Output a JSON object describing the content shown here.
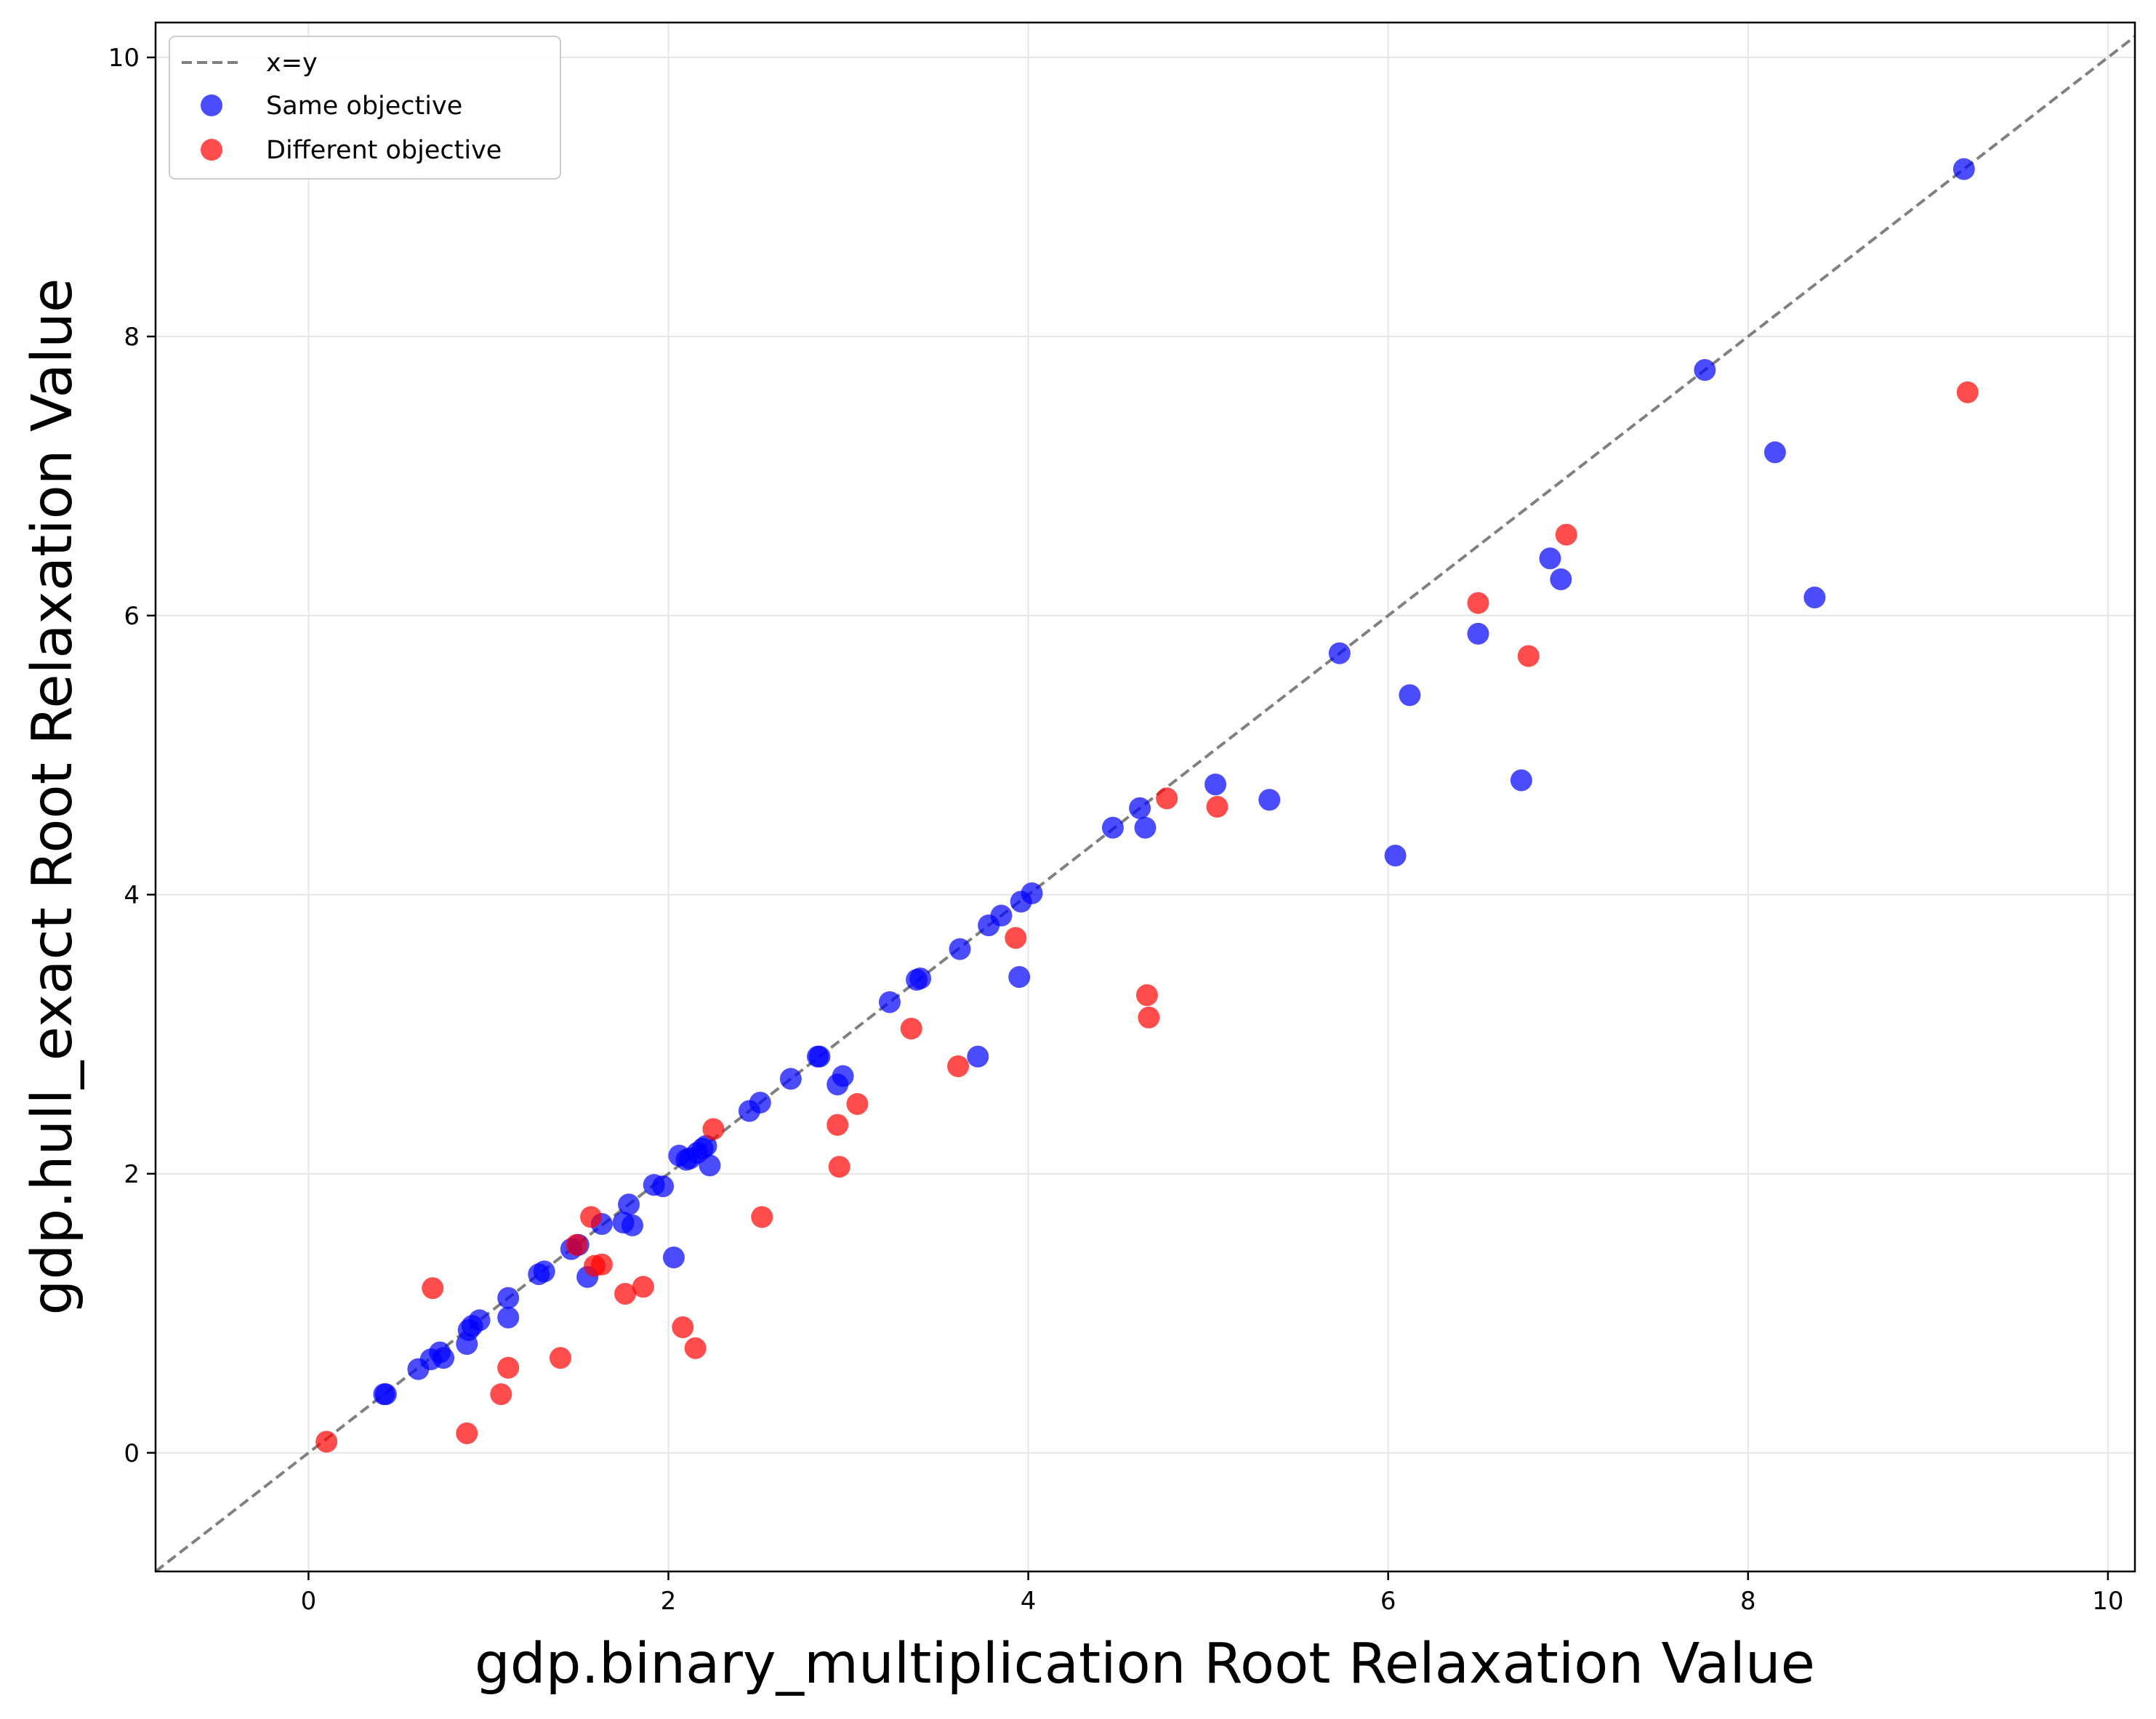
{
  "chart_data": {
    "type": "scatter",
    "title": "",
    "xlabel": "gdp.binary_multiplication Root Relaxation Value",
    "ylabel": "gdp.hull_exact Root Relaxation Value",
    "xlim": [
      -0.85,
      10.15
    ],
    "ylim": [
      -0.85,
      10.25
    ],
    "xticks": [
      0,
      2,
      4,
      6,
      8,
      10
    ],
    "yticks": [
      0,
      2,
      4,
      6,
      8,
      10
    ],
    "xtick_labels": [
      "0",
      "2",
      "4",
      "6",
      "8",
      "10"
    ],
    "ytick_labels": [
      "0",
      "2",
      "4",
      "6",
      "8",
      "10"
    ],
    "grid": true,
    "legend_position": "top-left",
    "reference_line": {
      "name": "x=y",
      "style": "dashed",
      "color": "#808080"
    },
    "series": [
      {
        "name": "Same objective",
        "color": "#0000ff",
        "points": [
          [
            0.42,
            0.42
          ],
          [
            0.43,
            0.42
          ],
          [
            0.61,
            0.6
          ],
          [
            0.68,
            0.67
          ],
          [
            0.73,
            0.72
          ],
          [
            0.75,
            0.68
          ],
          [
            0.88,
            0.78
          ],
          [
            0.89,
            0.88
          ],
          [
            0.91,
            0.91
          ],
          [
            0.95,
            0.95
          ],
          [
            1.11,
            0.97
          ],
          [
            1.11,
            1.11
          ],
          [
            1.28,
            1.28
          ],
          [
            1.31,
            1.3
          ],
          [
            1.46,
            1.46
          ],
          [
            1.5,
            1.49
          ],
          [
            1.55,
            1.26
          ],
          [
            1.63,
            1.64
          ],
          [
            1.75,
            1.65
          ],
          [
            1.78,
            1.78
          ],
          [
            1.8,
            1.63
          ],
          [
            1.92,
            1.92
          ],
          [
            1.97,
            1.91
          ],
          [
            2.03,
            1.4
          ],
          [
            2.06,
            2.13
          ],
          [
            2.1,
            2.1
          ],
          [
            2.12,
            2.11
          ],
          [
            2.16,
            2.15
          ],
          [
            2.19,
            2.18
          ],
          [
            2.21,
            2.2
          ],
          [
            2.23,
            2.06
          ],
          [
            2.45,
            2.45
          ],
          [
            2.51,
            2.51
          ],
          [
            2.68,
            2.68
          ],
          [
            2.83,
            2.84
          ],
          [
            2.84,
            2.84
          ],
          [
            2.94,
            2.64
          ],
          [
            2.97,
            2.7
          ],
          [
            3.23,
            3.23
          ],
          [
            3.38,
            3.39
          ],
          [
            3.4,
            3.4
          ],
          [
            3.62,
            3.61
          ],
          [
            3.72,
            2.84
          ],
          [
            3.78,
            3.78
          ],
          [
            3.85,
            3.85
          ],
          [
            3.95,
            3.41
          ],
          [
            3.96,
            3.95
          ],
          [
            4.02,
            4.01
          ],
          [
            4.47,
            4.48
          ],
          [
            4.62,
            4.62
          ],
          [
            4.65,
            4.48
          ],
          [
            5.04,
            4.79
          ],
          [
            5.34,
            4.68
          ],
          [
            5.73,
            5.73
          ],
          [
            6.04,
            4.28
          ],
          [
            6.12,
            5.43
          ],
          [
            6.5,
            5.87
          ],
          [
            6.74,
            4.82
          ],
          [
            6.9,
            6.41
          ],
          [
            6.96,
            6.26
          ],
          [
            7.76,
            7.76
          ],
          [
            8.15,
            7.17
          ],
          [
            8.37,
            6.13
          ],
          [
            9.2,
            9.2
          ]
        ]
      },
      {
        "name": "Different objective",
        "color": "#ff0000",
        "points": [
          [
            0.1,
            0.08
          ],
          [
            0.69,
            1.18
          ],
          [
            0.88,
            0.14
          ],
          [
            1.07,
            0.42
          ],
          [
            1.11,
            0.61
          ],
          [
            1.4,
            0.68
          ],
          [
            1.49,
            1.49
          ],
          [
            1.57,
            1.69
          ],
          [
            1.59,
            1.34
          ],
          [
            1.63,
            1.35
          ],
          [
            1.76,
            1.14
          ],
          [
            1.86,
            1.19
          ],
          [
            2.08,
            0.9
          ],
          [
            2.15,
            0.75
          ],
          [
            2.25,
            2.32
          ],
          [
            2.52,
            1.69
          ],
          [
            2.94,
            2.35
          ],
          [
            2.95,
            2.05
          ],
          [
            3.05,
            2.5
          ],
          [
            3.35,
            3.04
          ],
          [
            3.61,
            2.77
          ],
          [
            3.93,
            3.69
          ],
          [
            4.66,
            3.28
          ],
          [
            4.67,
            3.12
          ],
          [
            4.77,
            4.69
          ],
          [
            5.05,
            4.63
          ],
          [
            6.5,
            6.09
          ],
          [
            6.78,
            5.71
          ],
          [
            6.99,
            6.58
          ],
          [
            9.22,
            7.6
          ]
        ]
      }
    ]
  }
}
